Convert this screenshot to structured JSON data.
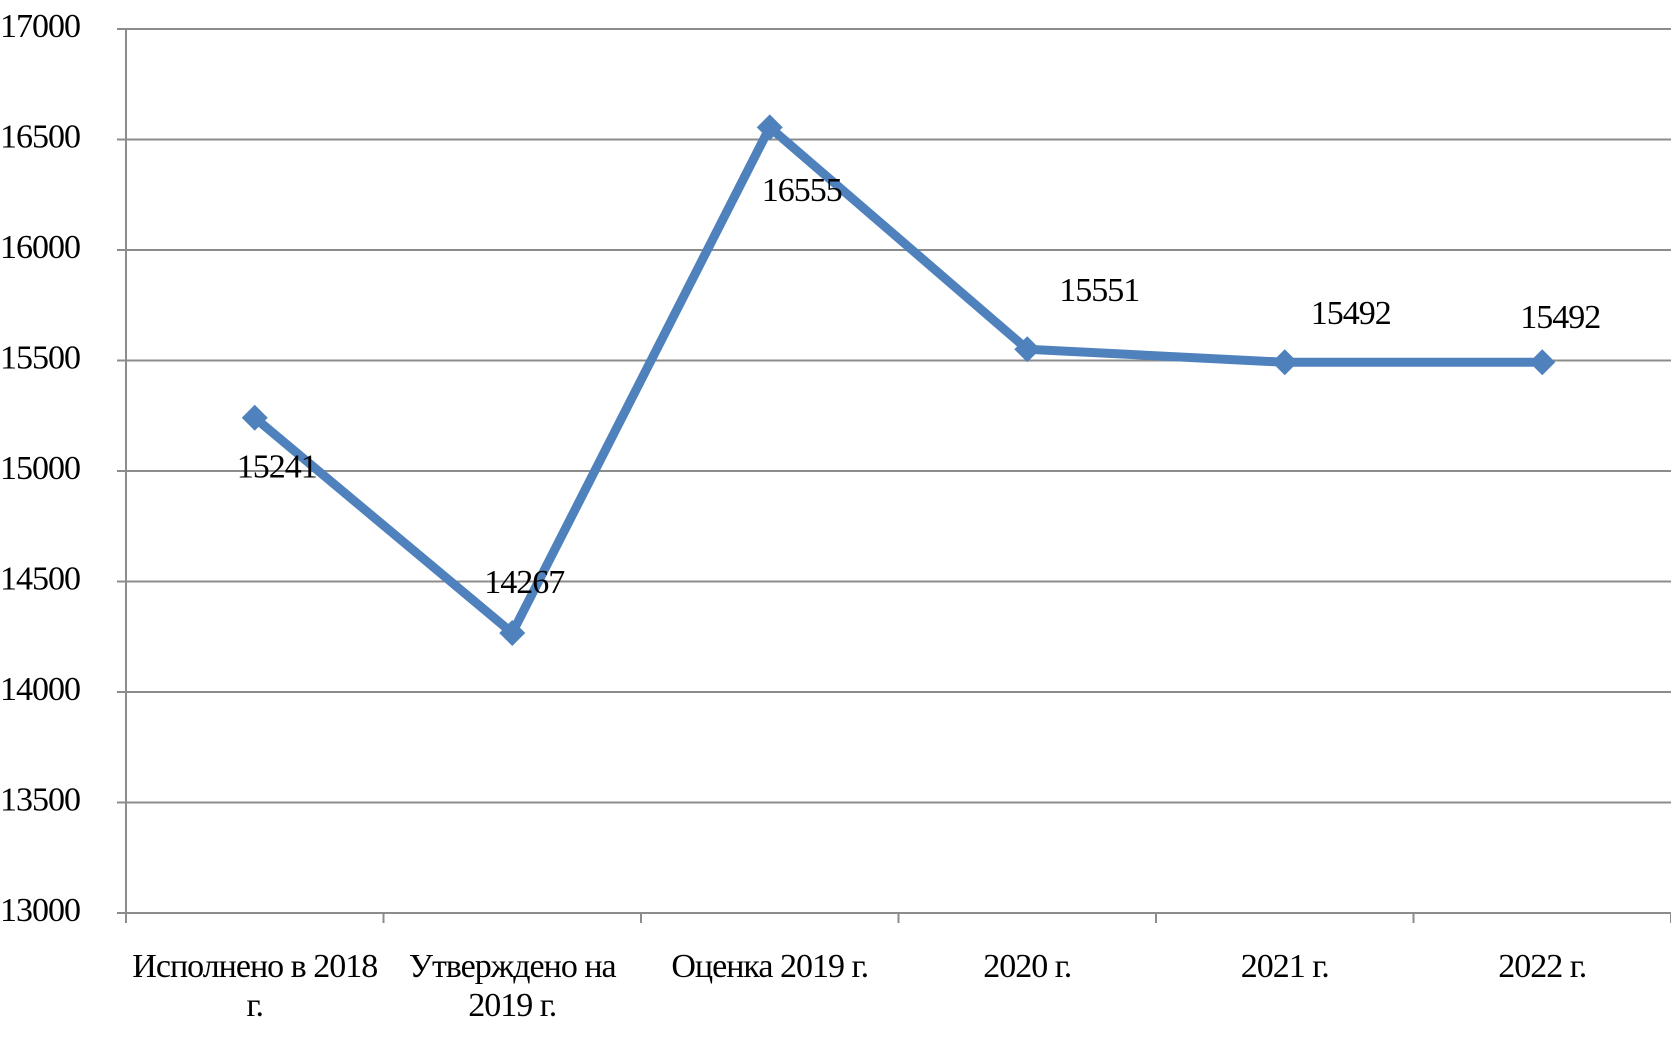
{
  "chart_data": {
    "type": "line",
    "categories": [
      "Исполнено в 2018 г.",
      "Утверждено на 2019 г.",
      "Оценка 2019 г.",
      "2020 г.",
      "2021 г.",
      "2022 г."
    ],
    "values": [
      15241,
      14267,
      16555,
      15551,
      15492,
      15492
    ],
    "color": "#4f81bd",
    "ylim": [
      13000,
      17000
    ],
    "yticks": [
      13000,
      13500,
      14000,
      14500,
      15000,
      15500,
      16000,
      16500,
      17000
    ],
    "grid": true
  }
}
